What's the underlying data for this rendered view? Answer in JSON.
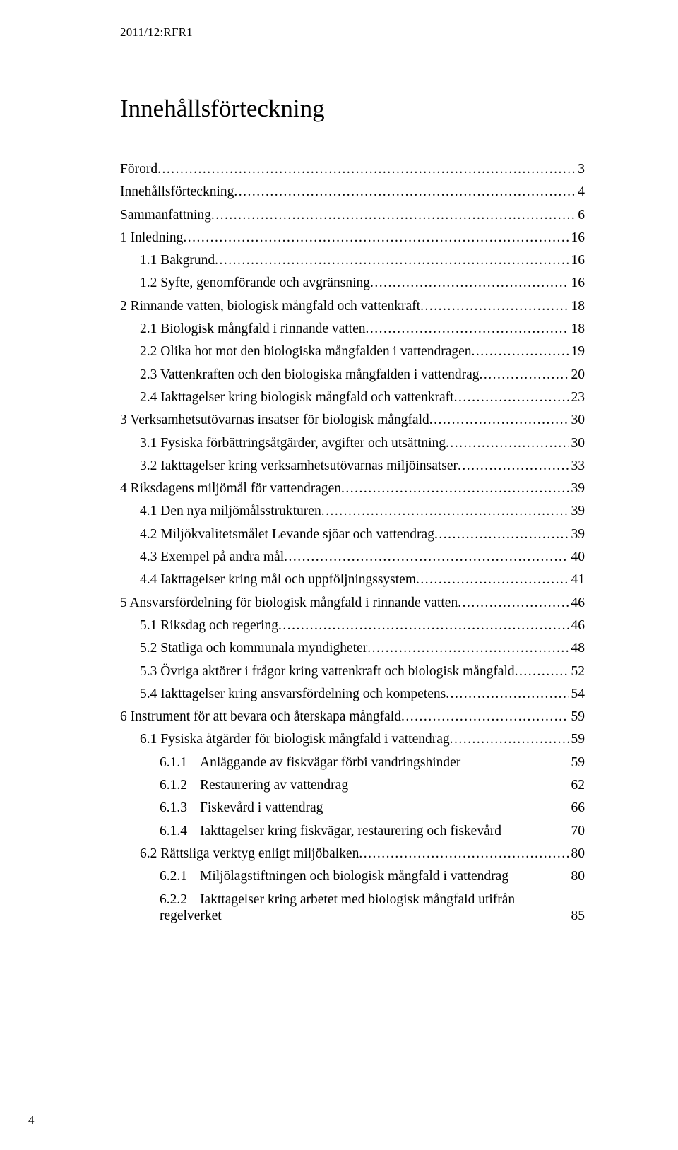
{
  "header_ref": "2011/12:RFR1",
  "title": "Innehållsförteckning",
  "footer_page": "4",
  "toc": [
    {
      "level": 0,
      "label": "Förord",
      "page": "3",
      "dotted": true
    },
    {
      "level": 0,
      "label": "Innehållsförteckning",
      "page": "4",
      "dotted": true
    },
    {
      "level": 0,
      "label": "Sammanfattning",
      "page": "6",
      "dotted": true
    },
    {
      "level": 0,
      "label": "1  Inledning",
      "page": "16",
      "dotted": true
    },
    {
      "level": 1,
      "label": "1.1 Bakgrund",
      "page": "16",
      "dotted": true
    },
    {
      "level": 1,
      "label": "1.2 Syfte, genomförande och avgränsning",
      "page": "16",
      "dotted": true
    },
    {
      "level": 0,
      "label": "2  Rinnande vatten, biologisk mångfald och vattenkraft",
      "page": "18",
      "dotted": true
    },
    {
      "level": 1,
      "label": "2.1 Biologisk mångfald i rinnande vatten",
      "page": "18",
      "dotted": true
    },
    {
      "level": 1,
      "label": "2.2 Olika hot mot den biologiska mångfalden i vattendragen",
      "page": "19",
      "dotted": true
    },
    {
      "level": 1,
      "label": "2.3 Vattenkraften och den biologiska mångfalden i vattendrag",
      "page": "20",
      "dotted": true
    },
    {
      "level": 1,
      "label": "2.4 Iakttagelser kring biologisk mångfald och vattenkraft",
      "page": "23",
      "dotted": true
    },
    {
      "level": 0,
      "label": "3  Verksamhetsutövarnas insatser för biologisk mångfald",
      "page": "30",
      "dotted": true
    },
    {
      "level": 1,
      "label": "3.1 Fysiska förbättringsåtgärder, avgifter och utsättning",
      "page": "30",
      "dotted": true
    },
    {
      "level": 1,
      "label": "3.2 Iakttagelser kring verksamhetsutövarnas miljöinsatser",
      "page": "33",
      "dotted": true
    },
    {
      "level": 0,
      "label": "4  Riksdagens miljömål för vattendragen",
      "page": "39",
      "dotted": true
    },
    {
      "level": 1,
      "label": "4.1 Den nya miljömålsstrukturen",
      "page": "39",
      "dotted": true
    },
    {
      "level": 1,
      "label": "4.2 Miljökvalitetsmålet Levande sjöar och vattendrag",
      "page": "39",
      "dotted": true
    },
    {
      "level": 1,
      "label": "4.3 Exempel på andra mål",
      "page": "40",
      "dotted": true
    },
    {
      "level": 1,
      "label": "4.4 Iakttagelser kring mål och uppföljningssystem",
      "page": "41",
      "dotted": true
    },
    {
      "level": 0,
      "label": "5  Ansvarsfördelning för biologisk mångfald i rinnande vatten",
      "page": "46",
      "dotted": true
    },
    {
      "level": 1,
      "label": "5.1 Riksdag och regering",
      "page": "46",
      "dotted": true
    },
    {
      "level": 1,
      "label": "5.2 Statliga och kommunala myndigheter",
      "page": "48",
      "dotted": true
    },
    {
      "level": 1,
      "label": "5.3 Övriga aktörer i frågor kring vattenkraft och biologisk mångfald",
      "page": "52",
      "dotted": true
    },
    {
      "level": 1,
      "label": "5.4 Iakttagelser kring ansvarsfördelning och kompetens",
      "page": "54",
      "dotted": true
    },
    {
      "level": 0,
      "label": "6  Instrument för att bevara och återskapa mångfald",
      "page": "59",
      "dotted": true
    },
    {
      "level": 1,
      "label": "6.1 Fysiska åtgärder för biologisk mångfald i vattendrag",
      "page": "59",
      "dotted": true
    },
    {
      "level": 2,
      "type": "num",
      "num": "6.1.1",
      "text": "Anläggande av fiskvägar förbi vandringshinder",
      "page": "59"
    },
    {
      "level": 2,
      "type": "num",
      "num": "6.1.2",
      "text": "Restaurering av vattendrag",
      "page": "62"
    },
    {
      "level": 2,
      "type": "num",
      "num": "6.1.3",
      "text": "Fiskevård i vattendrag",
      "page": "66"
    },
    {
      "level": 2,
      "type": "num",
      "num": "6.1.4",
      "text": "Iakttagelser kring fiskvägar, restaurering och fiskevård",
      "page": "70"
    },
    {
      "level": 1,
      "label": "6.2 Rättsliga verktyg enligt miljöbalken",
      "page": "80",
      "dotted": true
    },
    {
      "level": 2,
      "type": "num",
      "num": "6.2.1",
      "text": "Miljölagstiftningen och biologisk mångfald i vattendrag",
      "page": "80"
    },
    {
      "level": 2,
      "type": "multi",
      "num": "6.2.2",
      "line1": "Iakttagelser kring arbetet med biologisk mångfald utifrån",
      "line2": "regelverket",
      "page": "85"
    }
  ]
}
